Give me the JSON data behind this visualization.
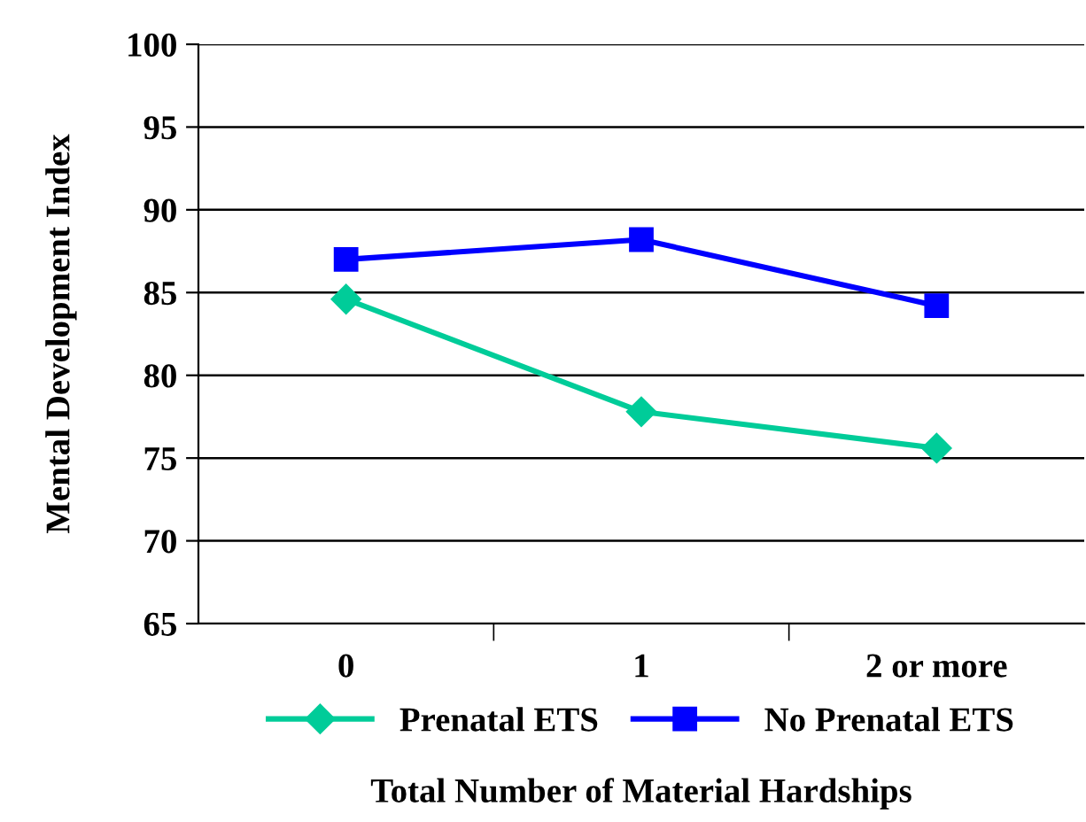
{
  "chart_data": {
    "type": "line",
    "xlabel": "Total Number of Material Hardships",
    "ylabel": "Mental Development Index",
    "categories": [
      "0",
      "1",
      "2 or more"
    ],
    "series": [
      {
        "name": "Prenatal ETS",
        "color": "#00cc99",
        "marker": "diamond",
        "values": [
          84.6,
          77.8,
          75.6
        ]
      },
      {
        "name": "No Prenatal ETS",
        "color": "#0000ff",
        "marker": "square",
        "values": [
          87.0,
          88.2,
          84.2
        ]
      }
    ],
    "ylim": [
      65,
      100
    ],
    "yticks": [
      65,
      70,
      75,
      80,
      85,
      90,
      95,
      100
    ],
    "grid": "y",
    "legend": "bottom",
    "line_style": "solid"
  }
}
